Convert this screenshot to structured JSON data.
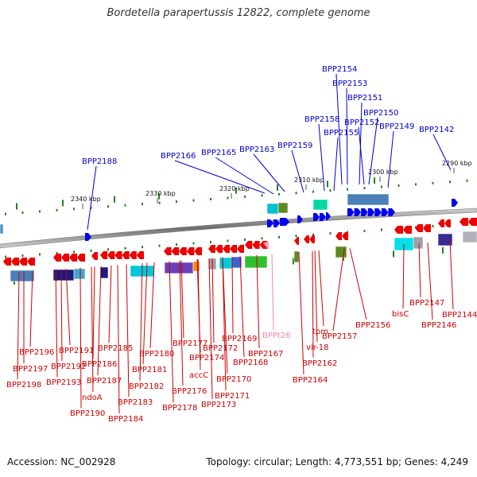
{
  "title": "Bordetella parapertussis 12822, complete genome",
  "footer": {
    "accession": "Accession: NC_002928",
    "topology": "Topology: circular; Length: 4,773,551 bp; Genes: 4,249"
  },
  "ruler_ticks": [
    "2290 kbp",
    "2300 kbp",
    "2310 kbp",
    "2320 kbp",
    "2330 kbp",
    "2340 kbp"
  ],
  "colors": {
    "top_label": "#0000cc",
    "bottom_label": "#cc0000",
    "trna_label": "#ee88aa",
    "forward_gene": "#0000ee",
    "reverse_gene": "#ee0000",
    "tick": "#208020",
    "backbone": "#888888"
  },
  "top_labels": [
    "BPP2154",
    "BPP2153",
    "BPP2151",
    "BPP2150",
    "BPP2158",
    "BPP2152",
    "BPP2149",
    "BPP2142",
    "BPP2155",
    "BPP2163",
    "BPP2165",
    "BPP2159",
    "BPP2166",
    "BPP2188"
  ],
  "bottom_labels": [
    "BPP2196",
    "BPP2191",
    "BPP2185",
    "BPP2180",
    "BPP2177",
    "BPP2169",
    "BPP2172",
    "BPP2167",
    "BPP2174",
    "BPP2168",
    "accC",
    "BPP2197",
    "BPP2192",
    "BPP2186",
    "BPP2181",
    "BPP2198",
    "BPP2193",
    "BPP2187",
    "BPP2182",
    "BPP2170",
    "BPP2176",
    "BPP2171",
    "ndoA",
    "BPP2183",
    "BPP2178",
    "BPP2173",
    "BPP2190",
    "BPP2184",
    "BPPt26",
    "tpm",
    "vir-18",
    "BPP2162",
    "BPP2164",
    "BPP2157",
    "BPP2156",
    "bisC",
    "BPP2147",
    "BPP2146",
    "BPP2144"
  ]
}
